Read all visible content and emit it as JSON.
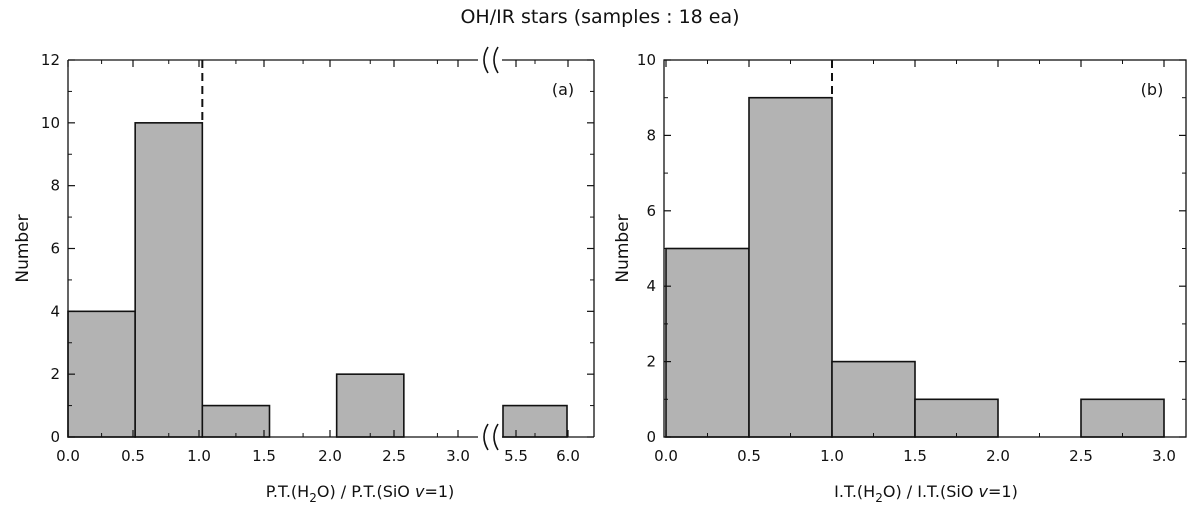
{
  "chart_data": [
    {
      "type": "bar",
      "panel_label": "(a)",
      "xlabel": {
        "main": "P.T.(H",
        "sub": "2",
        "mid": "O) / P.T.(SiO ",
        "italic": "v",
        "end": "=1)"
      },
      "ylabel": "Number",
      "ylim": [
        0,
        12
      ],
      "y_ticks": [
        "0",
        "2",
        "4",
        "6",
        "8",
        "10",
        "12"
      ],
      "x_tick_labels": [
        "0.0",
        "0.5",
        "1.0",
        "1.5",
        "2.0",
        "2.5",
        "3.0",
        "5.5",
        "6.0"
      ],
      "axis_break": "between 3.0 and 5.5",
      "bins": [
        {
          "range": [
            0.0,
            0.5
          ],
          "value": 4
        },
        {
          "range": [
            0.5,
            1.0
          ],
          "value": 10
        },
        {
          "range": [
            1.0,
            1.5
          ],
          "value": 1
        },
        {
          "range": [
            1.5,
            2.0
          ],
          "value": 0
        },
        {
          "range": [
            2.0,
            2.5
          ],
          "value": 2
        },
        {
          "range": [
            2.5,
            3.0
          ],
          "value": 0
        },
        {
          "range": [
            5.5,
            6.0
          ],
          "value": 1
        }
      ],
      "reference_line_x": 1.0,
      "bar_color": "#b3b3b3"
    },
    {
      "type": "bar",
      "panel_label": "(b)",
      "xlabel": {
        "main": "I.T.(H",
        "sub": "2",
        "mid": "O) / I.T.(SiO ",
        "italic": "v",
        "end": "=1)"
      },
      "ylabel": "Number",
      "ylim": [
        0,
        10
      ],
      "y_ticks": [
        "0",
        "2",
        "4",
        "6",
        "8",
        "10"
      ],
      "x_tick_labels": [
        "0.0",
        "0.5",
        "1.0",
        "1.5",
        "2.0",
        "2.5",
        "3.0"
      ],
      "bins": [
        {
          "range": [
            0.0,
            0.5
          ],
          "value": 5
        },
        {
          "range": [
            0.5,
            1.0
          ],
          "value": 9
        },
        {
          "range": [
            1.0,
            1.5
          ],
          "value": 2
        },
        {
          "range": [
            1.5,
            2.0
          ],
          "value": 1
        },
        {
          "range": [
            2.0,
            2.5
          ],
          "value": 0
        },
        {
          "range": [
            2.5,
            3.0
          ],
          "value": 1
        }
      ],
      "reference_line_x": 1.0,
      "bar_color": "#b3b3b3"
    }
  ],
  "figure": {
    "suptitle": "OH/IR stars (samples : 18 ea)"
  }
}
